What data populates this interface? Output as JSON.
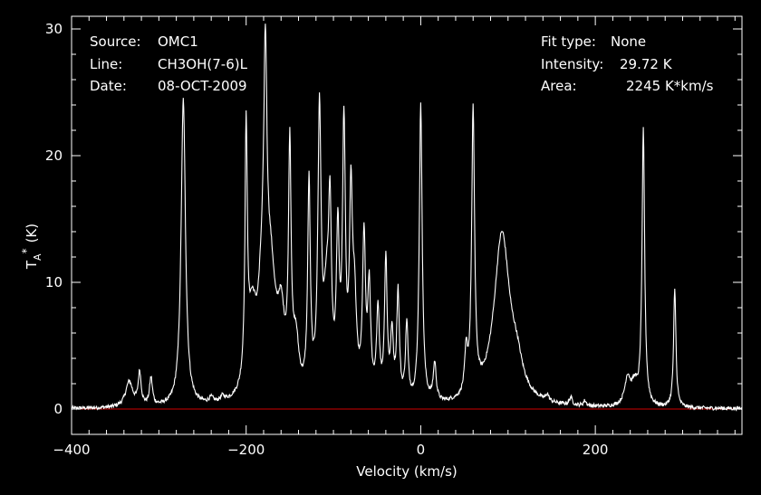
{
  "info_left": {
    "source_label": "Source:",
    "source_value": "OMC1",
    "line_label": "Line:",
    "line_value": "CH3OH(7-6)L",
    "date_label": "Date:",
    "date_value": "08-OCT-2009"
  },
  "info_right": {
    "fit_label": "Fit type:",
    "fit_value": "None",
    "intensity_label": "Intensity:",
    "intensity_value": "29.72 K",
    "area_label": "Area:",
    "area_value": "2245 K*km/s"
  },
  "colors": {
    "background": "#000000",
    "trace": "#ffffff",
    "baseline": "#d00000",
    "axes": "#ffffff"
  },
  "chart_data": {
    "type": "line",
    "xlabel": "Velocity (km/s)",
    "ylabel": "T_A^* (K)",
    "xlim": [
      -400,
      368
    ],
    "ylim": [
      -2,
      31
    ],
    "xticks": [
      -400,
      -200,
      0,
      200
    ],
    "yticks": [
      0,
      10,
      20,
      30
    ],
    "baseline_y": 0,
    "grid": false,
    "baseline_noise": 0.15,
    "peaks": [
      {
        "v": -334,
        "h": 2.0,
        "w": 5
      },
      {
        "v": -322,
        "h": 2.6,
        "w": 2
      },
      {
        "v": -309,
        "h": 2.2,
        "w": 2
      },
      {
        "v": -272,
        "h": 24.3,
        "w": 3
      },
      {
        "v": -240,
        "h": 0.4,
        "w": 3
      },
      {
        "v": -227,
        "h": 0.4,
        "w": 3
      },
      {
        "v": -200,
        "h": 19.5,
        "w": 1.6
      },
      {
        "v": -193,
        "h": 6.0,
        "w": 6
      },
      {
        "v": -182,
        "h": 6.0,
        "w": 5
      },
      {
        "v": -178,
        "h": 20.0,
        "w": 2.2
      },
      {
        "v": -172,
        "h": 9.0,
        "w": 7
      },
      {
        "v": -160,
        "h": 5.5,
        "w": 5
      },
      {
        "v": -150,
        "h": 18.5,
        "w": 1.8
      },
      {
        "v": -143,
        "h": 4.0,
        "w": 4
      },
      {
        "v": -128,
        "h": 16.5,
        "w": 1.8
      },
      {
        "v": -116,
        "h": 22.0,
        "w": 2.2
      },
      {
        "v": -108,
        "h": 7.0,
        "w": 4
      },
      {
        "v": -104,
        "h": 12.5,
        "w": 2
      },
      {
        "v": -95,
        "h": 12.0,
        "w": 2
      },
      {
        "v": -88,
        "h": 20.8,
        "w": 2
      },
      {
        "v": -80,
        "h": 14.5,
        "w": 2
      },
      {
        "v": -76,
        "h": 7.0,
        "w": 3
      },
      {
        "v": -65,
        "h": 12.5,
        "w": 2
      },
      {
        "v": -59,
        "h": 8.5,
        "w": 2
      },
      {
        "v": -49,
        "h": 7.0,
        "w": 2
      },
      {
        "v": -40,
        "h": 11.0,
        "w": 1.8
      },
      {
        "v": -33,
        "h": 5.0,
        "w": 2
      },
      {
        "v": -26,
        "h": 8.5,
        "w": 1.8
      },
      {
        "v": -16,
        "h": 6.0,
        "w": 1.8
      },
      {
        "v": 0,
        "h": 23.5,
        "w": 2
      },
      {
        "v": 16,
        "h": 3.0,
        "w": 2
      },
      {
        "v": 52,
        "h": 3.2,
        "w": 2
      },
      {
        "v": 60,
        "h": 22.3,
        "w": 2
      },
      {
        "v": 93,
        "h": 13.5,
        "w": 11
      },
      {
        "v": 110,
        "h": 2.0,
        "w": 8
      },
      {
        "v": 145,
        "h": 0.5,
        "w": 2
      },
      {
        "v": 172,
        "h": 0.6,
        "w": 2
      },
      {
        "v": 188,
        "h": 0.4,
        "w": 2
      },
      {
        "v": 237,
        "h": 2.2,
        "w": 4
      },
      {
        "v": 245,
        "h": 1.5,
        "w": 4
      },
      {
        "v": 255,
        "h": 21.7,
        "w": 1.8
      },
      {
        "v": 291,
        "h": 9.3,
        "w": 1.6
      }
    ]
  }
}
